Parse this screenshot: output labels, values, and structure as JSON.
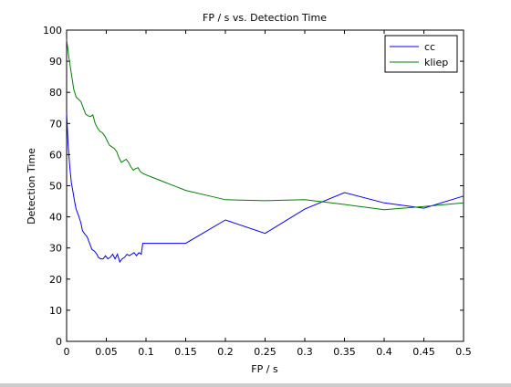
{
  "chart_data": {
    "type": "line",
    "title": "FP / s vs. Detection Time",
    "xlabel": "FP / s",
    "ylabel": "Detection Time",
    "xlim": [
      0,
      0.5
    ],
    "ylim": [
      0,
      100
    ],
    "xticks": [
      0,
      0.05,
      0.1,
      0.15,
      0.2,
      0.25,
      0.3,
      0.35,
      0.4,
      0.45,
      0.5
    ],
    "xtick_labels": [
      "0",
      "0.05",
      "0.1",
      "0.15",
      "0.2",
      "0.25",
      "0.3",
      "0.35",
      "0.4",
      "0.45",
      "0.5"
    ],
    "yticks": [
      0,
      10,
      20,
      30,
      40,
      50,
      60,
      70,
      80,
      90,
      100
    ],
    "ytick_labels": [
      "0",
      "10",
      "20",
      "30",
      "40",
      "50",
      "60",
      "70",
      "80",
      "90",
      "100"
    ],
    "grid": false,
    "legend": "top-right",
    "series": [
      {
        "name": "cc",
        "color": "#0000ff",
        "points": [
          [
            0.0,
            73.5
          ],
          [
            0.002,
            63.0
          ],
          [
            0.004,
            56.0
          ],
          [
            0.006,
            51.0
          ],
          [
            0.008,
            48.0
          ],
          [
            0.01,
            45.0
          ],
          [
            0.012,
            42.5
          ],
          [
            0.015,
            40.5
          ],
          [
            0.018,
            38.0
          ],
          [
            0.02,
            35.5
          ],
          [
            0.023,
            34.5
          ],
          [
            0.026,
            33.5
          ],
          [
            0.029,
            31.5
          ],
          [
            0.032,
            29.5
          ],
          [
            0.035,
            29.0
          ],
          [
            0.038,
            28.0
          ],
          [
            0.04,
            27.0
          ],
          [
            0.043,
            26.5
          ],
          [
            0.046,
            26.5
          ],
          [
            0.049,
            27.5
          ],
          [
            0.052,
            26.5
          ],
          [
            0.055,
            27.0
          ],
          [
            0.058,
            28.0
          ],
          [
            0.061,
            26.5
          ],
          [
            0.064,
            28.0
          ],
          [
            0.067,
            25.5
          ],
          [
            0.07,
            26.5
          ],
          [
            0.073,
            27.0
          ],
          [
            0.076,
            28.0
          ],
          [
            0.079,
            27.5
          ],
          [
            0.082,
            28.0
          ],
          [
            0.085,
            28.5
          ],
          [
            0.088,
            27.5
          ],
          [
            0.091,
            28.5
          ],
          [
            0.094,
            28.0
          ],
          [
            0.096,
            31.5
          ],
          [
            0.1,
            31.5
          ],
          [
            0.15,
            31.5
          ],
          [
            0.2,
            39.0
          ],
          [
            0.25,
            34.7
          ],
          [
            0.3,
            42.5
          ],
          [
            0.35,
            47.8
          ],
          [
            0.4,
            44.5
          ],
          [
            0.45,
            42.8
          ],
          [
            0.5,
            46.7
          ]
        ]
      },
      {
        "name": "kliep",
        "color": "#008000",
        "points": [
          [
            0.0,
            97.0
          ],
          [
            0.003,
            91.0
          ],
          [
            0.006,
            86.0
          ],
          [
            0.009,
            81.0
          ],
          [
            0.012,
            78.5
          ],
          [
            0.015,
            77.8
          ],
          [
            0.018,
            77.0
          ],
          [
            0.021,
            75.0
          ],
          [
            0.024,
            73.0
          ],
          [
            0.027,
            72.5
          ],
          [
            0.03,
            72.2
          ],
          [
            0.033,
            72.8
          ],
          [
            0.036,
            70.0
          ],
          [
            0.039,
            68.5
          ],
          [
            0.042,
            67.5
          ],
          [
            0.045,
            67.0
          ],
          [
            0.048,
            66.0
          ],
          [
            0.051,
            64.5
          ],
          [
            0.054,
            63.0
          ],
          [
            0.057,
            62.5
          ],
          [
            0.06,
            62.0
          ],
          [
            0.063,
            61.0
          ],
          [
            0.066,
            59.0
          ],
          [
            0.069,
            57.5
          ],
          [
            0.072,
            58.0
          ],
          [
            0.075,
            58.5
          ],
          [
            0.078,
            57.5
          ],
          [
            0.081,
            56.0
          ],
          [
            0.084,
            55.0
          ],
          [
            0.087,
            55.5
          ],
          [
            0.09,
            55.8
          ],
          [
            0.093,
            54.5
          ],
          [
            0.096,
            54.0
          ],
          [
            0.1,
            53.5
          ],
          [
            0.11,
            52.5
          ],
          [
            0.12,
            51.5
          ],
          [
            0.13,
            50.5
          ],
          [
            0.14,
            49.5
          ],
          [
            0.15,
            48.5
          ],
          [
            0.175,
            47.0
          ],
          [
            0.2,
            45.5
          ],
          [
            0.25,
            45.2
          ],
          [
            0.3,
            45.5
          ],
          [
            0.35,
            44.0
          ],
          [
            0.4,
            42.3
          ],
          [
            0.45,
            43.3
          ],
          [
            0.5,
            44.5
          ]
        ]
      }
    ]
  }
}
